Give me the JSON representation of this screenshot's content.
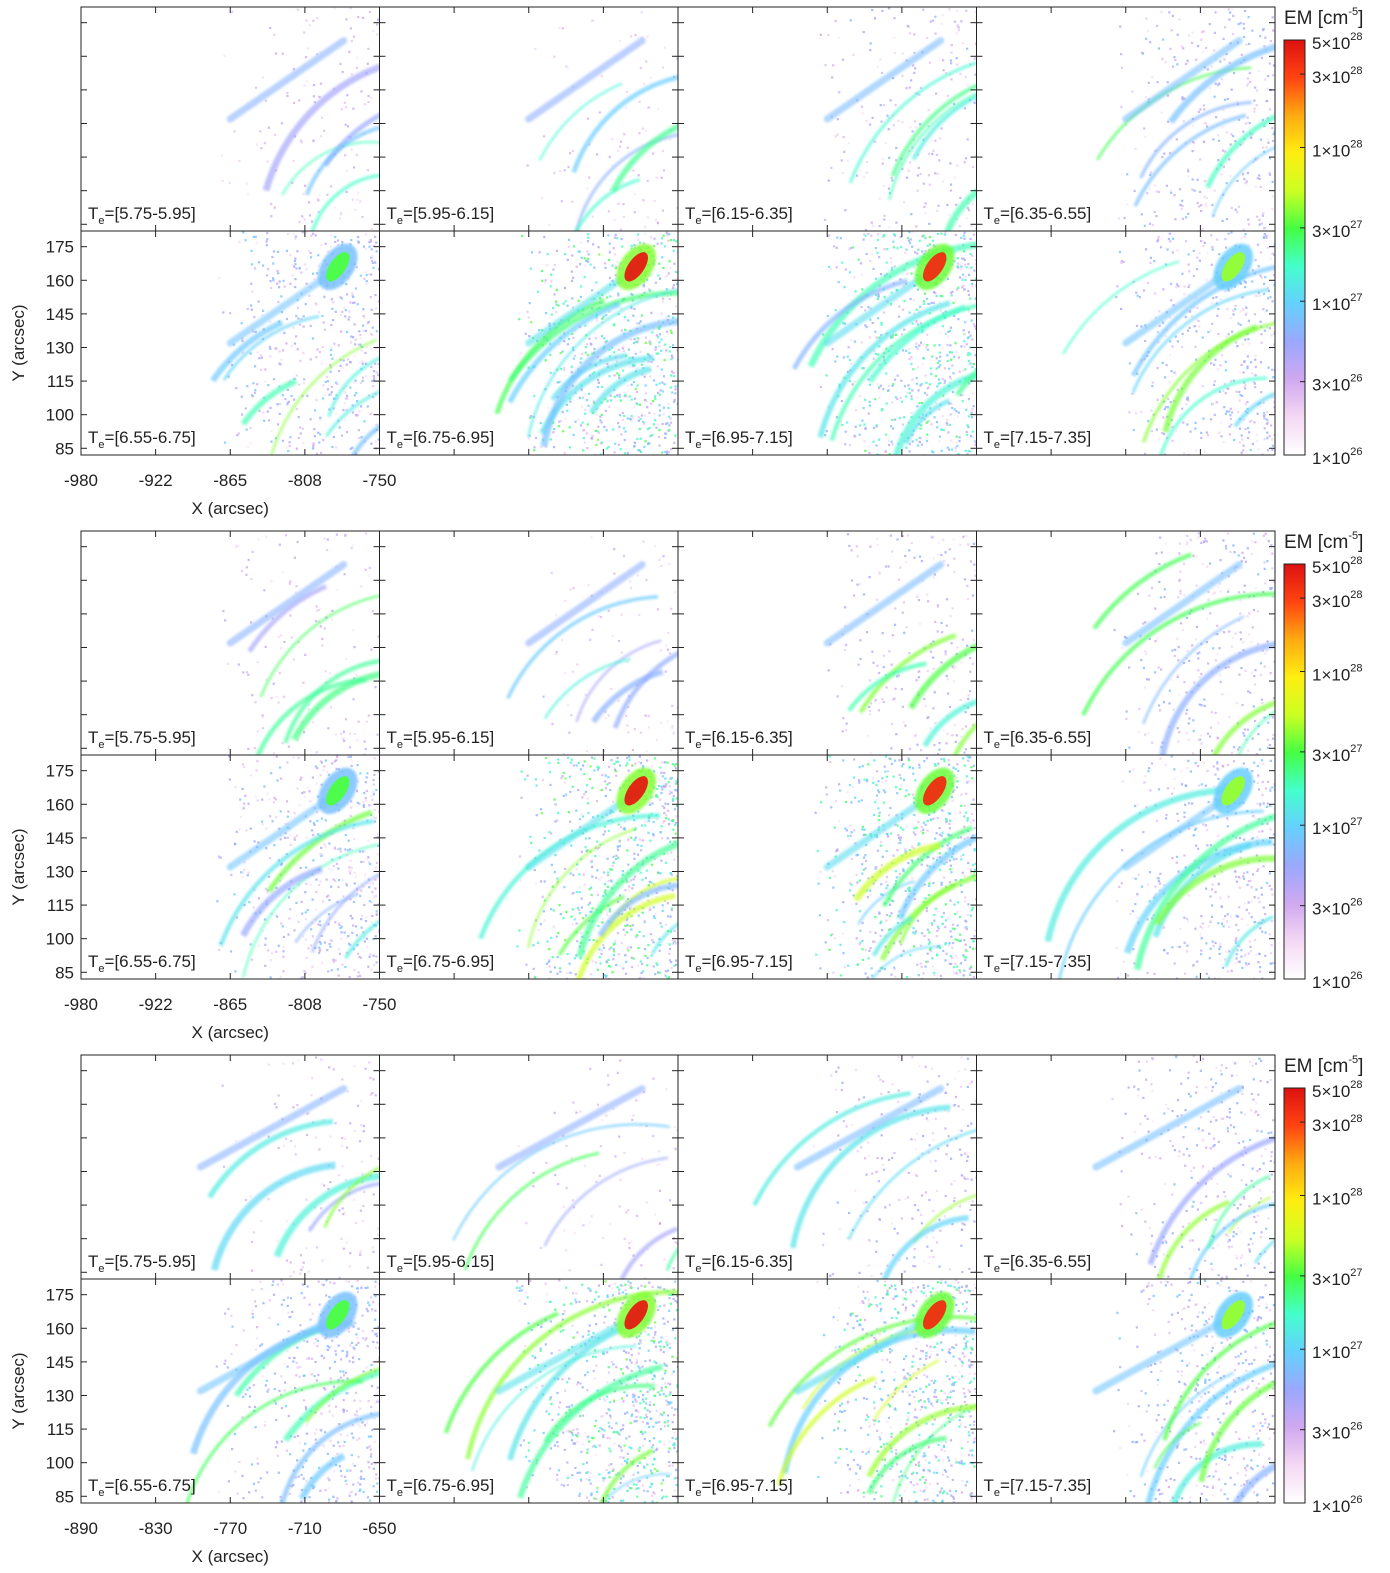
{
  "colorbar": {
    "title_base": "EM [cm",
    "title_exp": "-5",
    "title_close": "]",
    "ticks": [
      {
        "value": 5e+28,
        "mantissa": "5",
        "exponent": "28"
      },
      {
        "value": 3e+28,
        "mantissa": "3",
        "exponent": "28"
      },
      {
        "value": 1e+28,
        "mantissa": "1",
        "exponent": "28"
      },
      {
        "value": 3e+27,
        "mantissa": "3",
        "exponent": "27"
      },
      {
        "value": 1e+27,
        "mantissa": "1",
        "exponent": "27"
      },
      {
        "value": 3e+26,
        "mantissa": "3",
        "exponent": "26"
      },
      {
        "value": 1e+26,
        "mantissa": "1",
        "exponent": "26"
      }
    ],
    "range": [
      1e+26,
      5e+28
    ],
    "scale": "log",
    "stops": [
      "#ffffff",
      "#f4d8f4",
      "#d0a8f0",
      "#9aa8ff",
      "#66d0ff",
      "#44ffcc",
      "#44ff44",
      "#ccff22",
      "#ffee11",
      "#ffaa11",
      "#ff4411",
      "#dd1111"
    ]
  },
  "chart_data": [
    {
      "type": "heatmap",
      "xlabel": "X (arcsec)",
      "ylabel": "Y (arcsec)",
      "x_ticks": [
        "-980",
        "-922",
        "-865",
        "-808",
        "-750"
      ],
      "y_ticks": [
        "175",
        "160",
        "145",
        "130",
        "115",
        "100",
        "85"
      ],
      "xlim": [
        -980,
        -750
      ],
      "ylim": [
        82,
        182
      ],
      "panels": [
        "[5.75-5.95]",
        "[5.95-6.15]",
        "[6.15-6.35]",
        "[6.35-6.55]",
        "[6.55-6.75]",
        "[6.75-6.95]",
        "[6.95-7.15]",
        "[7.15-7.35]"
      ],
      "panel_label_prefix": "T",
      "panel_label_sub": "e",
      "panel_label_eq": "="
    },
    {
      "type": "heatmap",
      "xlabel": "X (arcsec)",
      "ylabel": "Y (arcsec)",
      "x_ticks": [
        "-980",
        "-922",
        "-865",
        "-808",
        "-750"
      ],
      "y_ticks": [
        "175",
        "160",
        "145",
        "130",
        "115",
        "100",
        "85"
      ],
      "xlim": [
        -980,
        -750
      ],
      "ylim": [
        82,
        182
      ],
      "panels": [
        "[5.75-5.95]",
        "[5.95-6.15]",
        "[6.15-6.35]",
        "[6.35-6.55]",
        "[6.55-6.75]",
        "[6.75-6.95]",
        "[6.95-7.15]",
        "[7.15-7.35]"
      ],
      "panel_label_prefix": "T",
      "panel_label_sub": "e",
      "panel_label_eq": "="
    },
    {
      "type": "heatmap",
      "xlabel": "X (arcsec)",
      "ylabel": "Y (arcsec)",
      "x_ticks": [
        "-890",
        "-830",
        "-770",
        "-710",
        "-650"
      ],
      "y_ticks": [
        "175",
        "160",
        "145",
        "130",
        "115",
        "100",
        "85"
      ],
      "xlim": [
        -890,
        -650
      ],
      "ylim": [
        82,
        182
      ],
      "panels": [
        "[5.75-5.95]",
        "[5.95-6.15]",
        "[6.15-6.35]",
        "[6.35-6.55]",
        "[6.55-6.75]",
        "[6.75-6.95]",
        "[6.95-7.15]",
        "[7.15-7.35]"
      ],
      "panel_label_prefix": "T",
      "panel_label_sub": "e",
      "panel_label_eq": "="
    }
  ]
}
